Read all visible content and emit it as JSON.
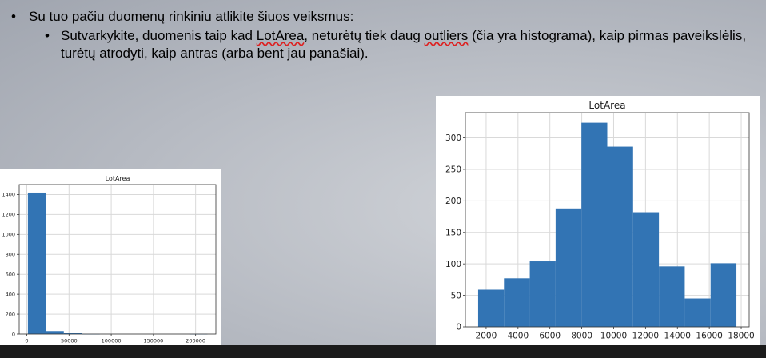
{
  "slide": {
    "bullet1": {
      "dot": "•",
      "text": "Su tuo pačiu duomenų rinkiniu atlikite šiuos veiksmus:"
    },
    "bullet2": {
      "dot": "•",
      "text_before": "Sutvarkykite, duomenis taip kad ",
      "squiggle1": "LotArea",
      "text_middle": ", neturėtų tiek daug ",
      "squiggle2": "outliers",
      "text_after": " (čia yra histograma), kaip pirmas paveikslėlis, turėtų atrodyti, kaip antras (arba bent jau panašiai)."
    }
  },
  "colors": {
    "bar": "#3274b4",
    "grid": "#d9d9d9"
  },
  "chart_data": [
    {
      "type": "bar",
      "title": "LotArea",
      "bin_edges": [
        1300,
        22570,
        43840,
        65110,
        86380,
        107650,
        128920,
        150190,
        171460,
        192730,
        214000
      ],
      "values": [
        1420,
        30,
        8,
        1,
        0,
        0,
        0,
        0,
        0,
        1
      ],
      "xticks": [
        0,
        50000,
        100000,
        150000,
        200000
      ],
      "xtick_labels": [
        "0",
        "50000",
        "100000",
        "150000",
        "200000"
      ],
      "yticks": [
        0,
        200,
        400,
        600,
        800,
        1000,
        1200,
        1400
      ],
      "ylim": [
        0,
        1500
      ],
      "xlim": [
        -9000,
        224000
      ],
      "grid": true
    },
    {
      "type": "bar",
      "title": "LotArea",
      "bin_edges": [
        1500,
        3120,
        4740,
        6360,
        7980,
        9600,
        11220,
        12840,
        14460,
        16080,
        17700
      ],
      "values": [
        59,
        77,
        104,
        188,
        324,
        286,
        182,
        96,
        45,
        101
      ],
      "xticks": [
        2000,
        4000,
        6000,
        8000,
        10000,
        12000,
        14000,
        16000,
        18000
      ],
      "xtick_labels": [
        "2000",
        "4000",
        "6000",
        "8000",
        "10000",
        "12000",
        "14000",
        "16000",
        "18000"
      ],
      "yticks": [
        0,
        50,
        100,
        150,
        200,
        250,
        300
      ],
      "ylim": [
        0,
        340
      ],
      "xlim": [
        700,
        18500
      ],
      "grid": true
    }
  ]
}
